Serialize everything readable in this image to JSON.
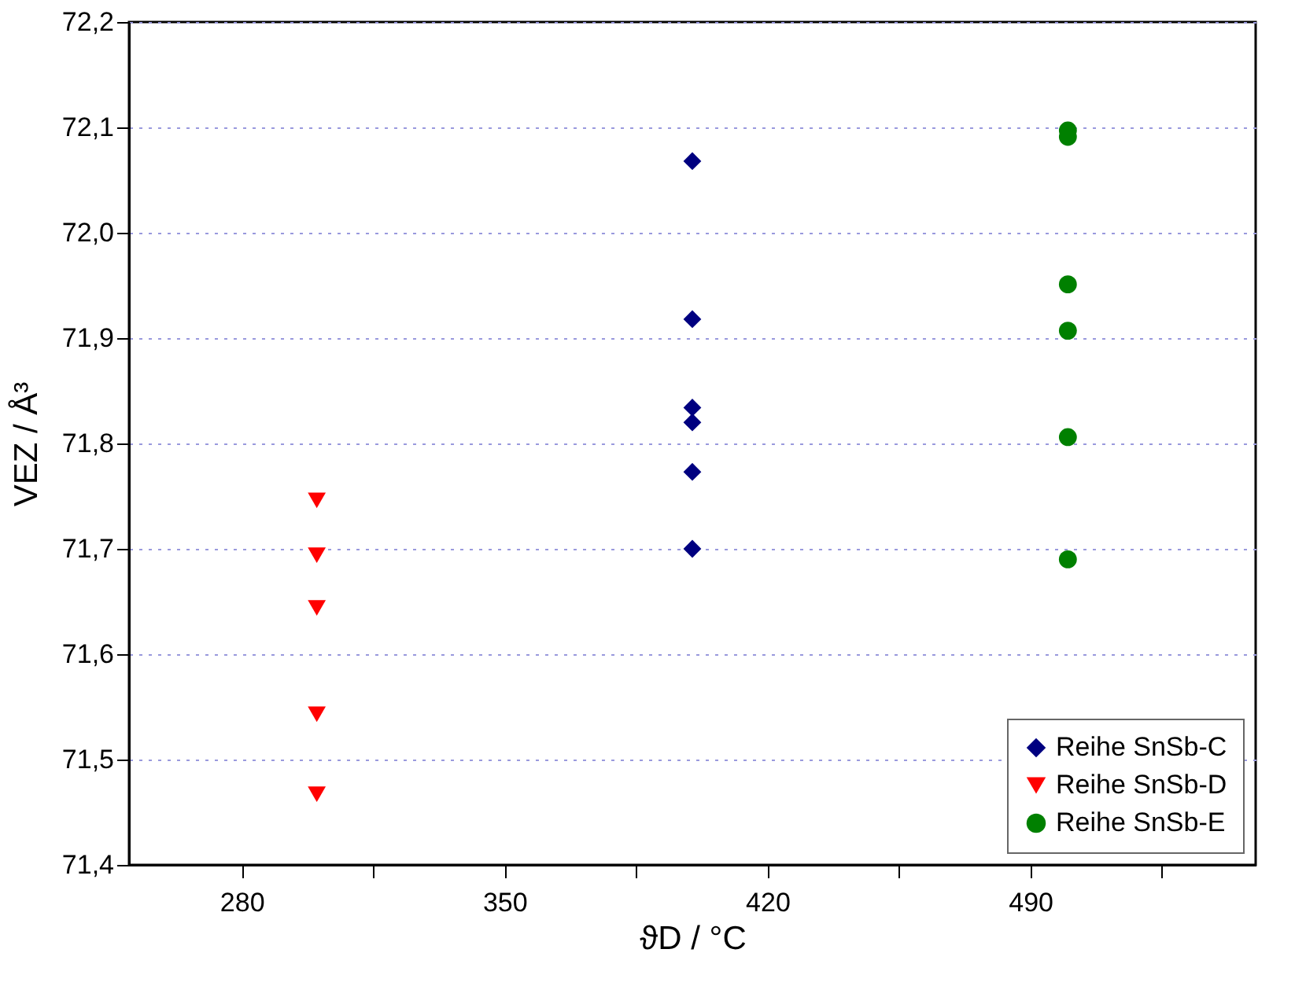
{
  "chart_data": {
    "type": "scatter",
    "xlabel": "ϑD / °C",
    "ylabel": "VEZ / Å³",
    "xlim": [
      250,
      550
    ],
    "xticks": [
      280,
      {
        "value": 315,
        "label": null
      },
      350,
      {
        "value": 385,
        "label": null
      },
      420,
      {
        "value": 455,
        "label": null
      },
      490,
      {
        "value": 525,
        "label": null
      }
    ],
    "ylim": [
      71.4,
      72.2
    ],
    "yticks": [
      {
        "value": 71.4,
        "label": "71,4"
      },
      {
        "value": 71.5,
        "label": "71,5"
      },
      {
        "value": 71.6,
        "label": "71,6"
      },
      {
        "value": 71.7,
        "label": "71,7"
      },
      {
        "value": 71.8,
        "label": "71,8"
      },
      {
        "value": 71.9,
        "label": "71,9"
      },
      {
        "value": 72.0,
        "label": "72,0"
      },
      {
        "value": 72.1,
        "label": "72,1"
      },
      {
        "value": 72.2,
        "label": "72,2"
      }
    ],
    "grid": "y",
    "legend": "bottom right",
    "series": [
      {
        "name": "Reihe SnSb-C",
        "color": "#000080",
        "marker": "diamond",
        "x": [
          400,
          400,
          400,
          400,
          400,
          400
        ],
        "values": [
          72.068,
          71.918,
          71.834,
          71.82,
          71.773,
          71.7
        ]
      },
      {
        "name": "Reihe SnSb-D",
        "color": "#ff0000",
        "marker": "triangle",
        "x": [
          300,
          300,
          300,
          300,
          300
        ],
        "values": [
          71.746,
          71.694,
          71.644,
          71.543,
          71.467
        ]
      },
      {
        "name": "Reihe SnSb-E",
        "color": "#008000",
        "marker": "circle",
        "x": [
          500,
          500,
          500,
          500,
          500,
          500
        ],
        "values": [
          72.097,
          72.091,
          71.951,
          71.907,
          71.806,
          71.69
        ]
      }
    ]
  }
}
